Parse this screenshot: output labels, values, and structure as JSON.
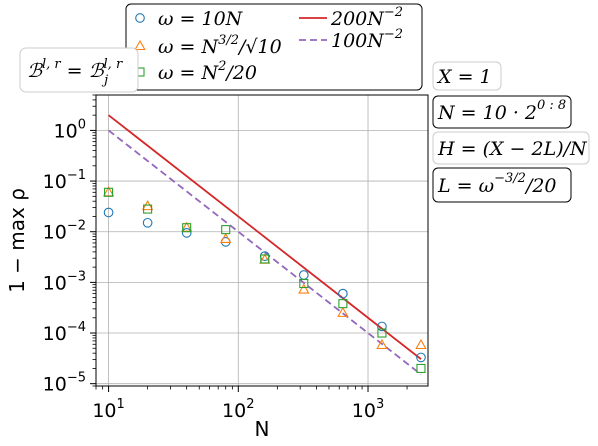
{
  "chart_data": {
    "type": "scatter",
    "xlabel": "N",
    "ylabel": "1 − max ρ",
    "xscale": "log",
    "yscale": "log",
    "xlim": [
      8,
      2900
    ],
    "ylim": [
      9e-06,
      5
    ],
    "grid": true,
    "legend_placement": "top",
    "x_ticks": [
      {
        "value": 10,
        "base": "10",
        "exp": "1"
      },
      {
        "value": 100,
        "base": "10",
        "exp": "2"
      },
      {
        "value": 1000,
        "base": "10",
        "exp": "3"
      }
    ],
    "y_ticks": [
      {
        "value": 1,
        "base": "10",
        "exp": "0"
      },
      {
        "value": 0.1,
        "base": "10",
        "exp": "−1"
      },
      {
        "value": 0.01,
        "base": "10",
        "exp": "−2"
      },
      {
        "value": 0.001,
        "base": "10",
        "exp": "−3"
      },
      {
        "value": 0.0001,
        "base": "10",
        "exp": "−4"
      },
      {
        "value": 1e-05,
        "base": "10",
        "exp": "−5"
      }
    ],
    "x": [
      10,
      20,
      40,
      80,
      160,
      320,
      640,
      1280,
      2560
    ],
    "series": [
      {
        "name": "ω = 10N",
        "marker": "circle",
        "color": "#1f77b4",
        "values": [
          0.024,
          0.015,
          0.0095,
          0.0063,
          0.0033,
          0.0014,
          0.0006,
          0.000135,
          3.3e-05
        ]
      },
      {
        "name": "ω = N^{3/2}/√10",
        "marker": "triangle",
        "color": "#ff7f0e",
        "values": [
          0.06,
          0.032,
          0.012,
          0.0072,
          0.0028,
          0.00072,
          0.00025,
          5.8e-05,
          5.8e-05
        ]
      },
      {
        "name": "ω = N²/20",
        "marker": "square",
        "color": "#2ca02c",
        "values": [
          0.06,
          0.028,
          0.012,
          0.011,
          0.0029,
          0.00095,
          0.00038,
          0.0001,
          2e-05
        ]
      },
      {
        "name": "200N⁻²",
        "line": "solid",
        "color": "#d62728",
        "coefficient": 200,
        "exponent": -2
      },
      {
        "name": "100N⁻²",
        "line": "dashed",
        "color": "#9467bd",
        "coefficient": 100,
        "exponent": -2
      }
    ]
  },
  "legend": {
    "items": [
      {
        "pre": "ω = 10",
        "ital": "N",
        "post": "",
        "sup": ""
      },
      {
        "pre": "ω = ",
        "ital": "N",
        "post": "",
        "sup": "3/2",
        "tail": "/√10"
      },
      {
        "pre": "ω = ",
        "ital": "N",
        "post": "",
        "sup": "2",
        "tail": "/20"
      },
      {
        "pre": "200",
        "ital": "N",
        "post": "",
        "sup": "−2"
      },
      {
        "pre": "100",
        "ital": "N",
        "post": "",
        "sup": "−2"
      }
    ]
  },
  "annotations": {
    "basis_label": "ℬ^{l,r} = ℬ_j^{l,r}",
    "basis_parts": {
      "lhs": "ℬ",
      "lhs_sup": "l, r",
      "eq": " = ",
      "rhs": "ℬ",
      "rhs_sub": "j",
      "rhs_sup": "l, r"
    },
    "boxes": [
      {
        "id": "x",
        "text": "X = 1"
      },
      {
        "id": "n",
        "text": "N = 10 · 2",
        "sup": "0 : 8"
      },
      {
        "id": "h",
        "text": "H = (X − 2L)/N"
      },
      {
        "id": "l",
        "text": "L = ω",
        "sup": "−3/2",
        "tail": "/20"
      }
    ]
  }
}
